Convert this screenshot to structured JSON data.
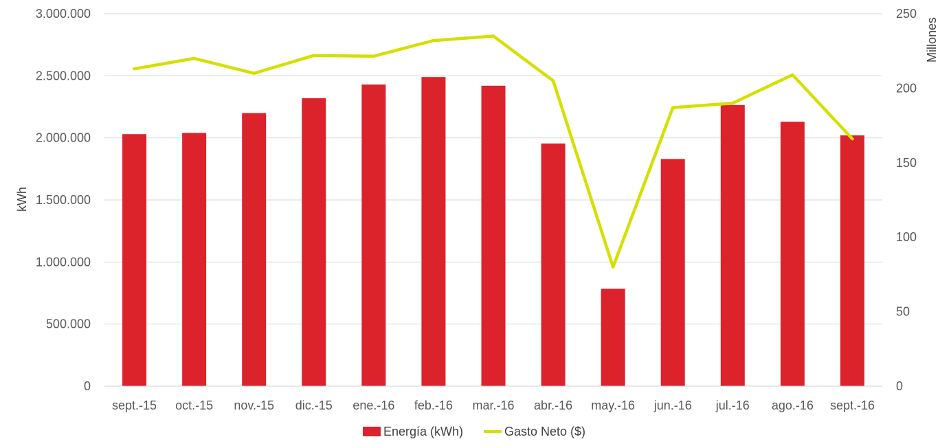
{
  "chart_data": {
    "type": "bar",
    "categories": [
      "sept.-15",
      "oct.-15",
      "nov.-15",
      "dic.-15",
      "ene.-16",
      "feb.-16",
      "mar.-16",
      "abr.-16",
      "may.-16",
      "jun.-16",
      "jul.-16",
      "ago.-16",
      "sept.-16"
    ],
    "series": [
      {
        "name": "Energía (kWh)",
        "type": "bar",
        "axis": "left",
        "color": "#DC232B",
        "values": [
          2030000,
          2040000,
          2200000,
          2320000,
          2430000,
          2490000,
          2420000,
          1955000,
          785000,
          1830000,
          2265000,
          2130000,
          2020000
        ]
      },
      {
        "name": "Gasto Neto ($)",
        "type": "line",
        "axis": "right",
        "color": "#D4E000",
        "values": [
          213,
          220,
          210,
          222,
          221.5,
          232,
          235,
          205,
          80,
          187,
          190,
          209,
          166
        ]
      }
    ],
    "y_left": {
      "label": "kWh",
      "min": 0,
      "max": 3000000,
      "step": 500000,
      "tick_labels": [
        "0",
        "500.000",
        "1.000.000",
        "1.500.000",
        "2.000.000",
        "2.500.000",
        "3.000.000"
      ]
    },
    "y_right": {
      "label": "Millones",
      "min": 0,
      "max": 250,
      "step": 50,
      "tick_labels": [
        "0",
        "50",
        "100",
        "150",
        "200",
        "250"
      ]
    },
    "grid": true,
    "legend_position": "bottom"
  }
}
